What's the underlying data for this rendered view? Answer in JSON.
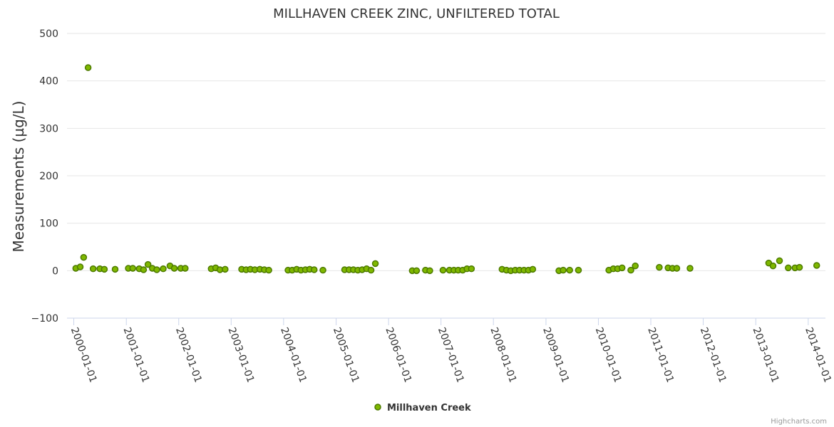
{
  "chart_data": {
    "type": "scatter",
    "title": "MILLHAVEN CREEK ZINC, UNFILTERED TOTAL",
    "ylabel": "Measurements (µg/L)",
    "xlabel": "",
    "ylim": [
      -100,
      500
    ],
    "yticks": [
      -100,
      0,
      100,
      200,
      300,
      400,
      500
    ],
    "ytick_labels": [
      "−100",
      "0",
      "100",
      "200",
      "300",
      "400",
      "500"
    ],
    "xlim": [
      "1999-11-15",
      "2014-05-01"
    ],
    "xticks": [
      "2000-01-01",
      "2001-01-01",
      "2002-01-01",
      "2003-01-01",
      "2004-01-01",
      "2005-01-01",
      "2006-01-01",
      "2007-01-01",
      "2008-01-01",
      "2009-01-01",
      "2010-01-01",
      "2011-01-01",
      "2012-01-01",
      "2013-01-01",
      "2014-01-01"
    ],
    "grid": true,
    "legend": "bottom-center",
    "series": [
      {
        "name": "Millhaven Creek",
        "color": "#7fb800",
        "points": [
          [
            "2000-01-15",
            5
          ],
          [
            "2000-02-15",
            8
          ],
          [
            "2000-03-10",
            28
          ],
          [
            "2000-04-10",
            428
          ],
          [
            "2000-05-15",
            4
          ],
          [
            "2000-07-01",
            4
          ],
          [
            "2000-08-01",
            3
          ],
          [
            "2000-10-15",
            3
          ],
          [
            "2001-01-15",
            5
          ],
          [
            "2001-02-15",
            5
          ],
          [
            "2001-04-01",
            4
          ],
          [
            "2001-05-01",
            2
          ],
          [
            "2001-06-01",
            13
          ],
          [
            "2001-07-01",
            5
          ],
          [
            "2001-08-01",
            2
          ],
          [
            "2001-09-15",
            4
          ],
          [
            "2001-11-01",
            10
          ],
          [
            "2001-12-01",
            5
          ],
          [
            "2002-01-15",
            5
          ],
          [
            "2002-02-15",
            5
          ],
          [
            "2002-08-15",
            4
          ],
          [
            "2002-09-15",
            6
          ],
          [
            "2002-10-15",
            2
          ],
          [
            "2002-11-20",
            3
          ],
          [
            "2003-03-15",
            3
          ],
          [
            "2003-04-15",
            2
          ],
          [
            "2003-05-15",
            3
          ],
          [
            "2003-06-15",
            2
          ],
          [
            "2003-07-20",
            3
          ],
          [
            "2003-08-20",
            2
          ],
          [
            "2003-09-20",
            1
          ],
          [
            "2004-02-01",
            1
          ],
          [
            "2004-03-01",
            1
          ],
          [
            "2004-04-01",
            3
          ],
          [
            "2004-05-01",
            1
          ],
          [
            "2004-06-01",
            2
          ],
          [
            "2004-07-01",
            3
          ],
          [
            "2004-08-01",
            2
          ],
          [
            "2004-10-01",
            1
          ],
          [
            "2005-03-01",
            2
          ],
          [
            "2005-04-01",
            2
          ],
          [
            "2005-05-01",
            2
          ],
          [
            "2005-06-01",
            1
          ],
          [
            "2005-07-01",
            2
          ],
          [
            "2005-08-01",
            4
          ],
          [
            "2005-09-01",
            1
          ],
          [
            "2005-10-01",
            15
          ],
          [
            "2006-06-15",
            0
          ],
          [
            "2006-07-15",
            0
          ],
          [
            "2006-09-15",
            1
          ],
          [
            "2006-10-15",
            0
          ],
          [
            "2007-01-15",
            1
          ],
          [
            "2007-03-01",
            1
          ],
          [
            "2007-04-01",
            1
          ],
          [
            "2007-05-01",
            1
          ],
          [
            "2007-06-01",
            1
          ],
          [
            "2007-07-01",
            4
          ],
          [
            "2007-08-01",
            4
          ],
          [
            "2008-03-01",
            3
          ],
          [
            "2008-04-01",
            1
          ],
          [
            "2008-05-01",
            0
          ],
          [
            "2008-06-01",
            1
          ],
          [
            "2008-07-01",
            1
          ],
          [
            "2008-08-01",
            1
          ],
          [
            "2008-09-01",
            1
          ],
          [
            "2008-10-01",
            3
          ],
          [
            "2009-04-01",
            0
          ],
          [
            "2009-05-01",
            1
          ],
          [
            "2009-06-15",
            1
          ],
          [
            "2009-08-15",
            1
          ],
          [
            "2010-03-15",
            1
          ],
          [
            "2010-04-15",
            4
          ],
          [
            "2010-05-15",
            4
          ],
          [
            "2010-06-15",
            6
          ],
          [
            "2010-08-15",
            1
          ],
          [
            "2010-09-15",
            10
          ],
          [
            "2011-03-01",
            7
          ],
          [
            "2011-05-01",
            6
          ],
          [
            "2011-06-01",
            5
          ],
          [
            "2011-07-01",
            5
          ],
          [
            "2011-10-01",
            5
          ],
          [
            "2013-04-01",
            16
          ],
          [
            "2013-05-01",
            10
          ],
          [
            "2013-06-15",
            21
          ],
          [
            "2013-08-15",
            6
          ],
          [
            "2013-10-01",
            6
          ],
          [
            "2013-11-01",
            7
          ],
          [
            "2014-03-01",
            11
          ]
        ]
      }
    ],
    "credit": "Highcharts.com"
  }
}
